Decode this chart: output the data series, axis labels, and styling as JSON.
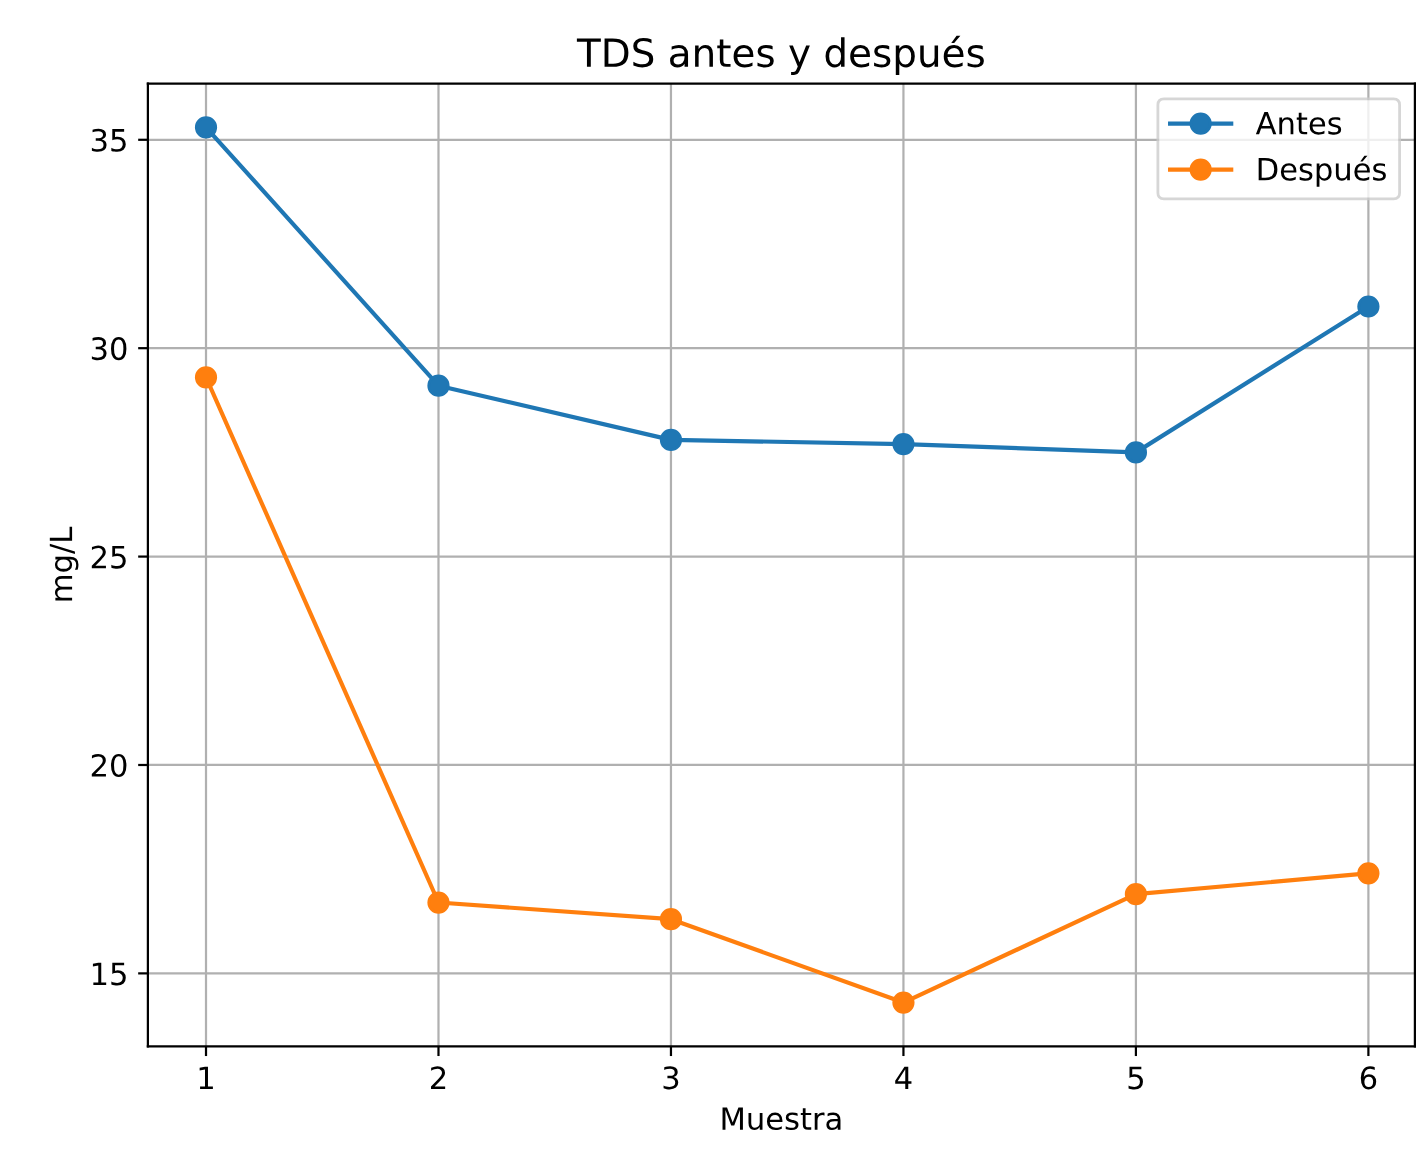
{
  "chart_data": {
    "type": "line",
    "title": "TDS antes y después",
    "xlabel": "Muestra",
    "ylabel": "mg/L",
    "x": [
      1,
      2,
      3,
      4,
      5,
      6
    ],
    "series": [
      {
        "name": "Antes",
        "color": "#1f77b4",
        "values": [
          35.3,
          29.1,
          27.8,
          27.7,
          27.5,
          31.0
        ]
      },
      {
        "name": "Después",
        "color": "#ff7f0e",
        "values": [
          29.3,
          16.7,
          16.3,
          14.3,
          16.9,
          17.4
        ]
      }
    ],
    "xlim": [
      0.75,
      6.2
    ],
    "ylim": [
      13.25,
      36.35
    ],
    "xticks": [
      1,
      2,
      3,
      4,
      5,
      6
    ],
    "yticks": [
      15,
      20,
      25,
      30,
      35
    ],
    "grid": true,
    "legend": "top right",
    "marker": "circle",
    "line_style": "solid"
  }
}
